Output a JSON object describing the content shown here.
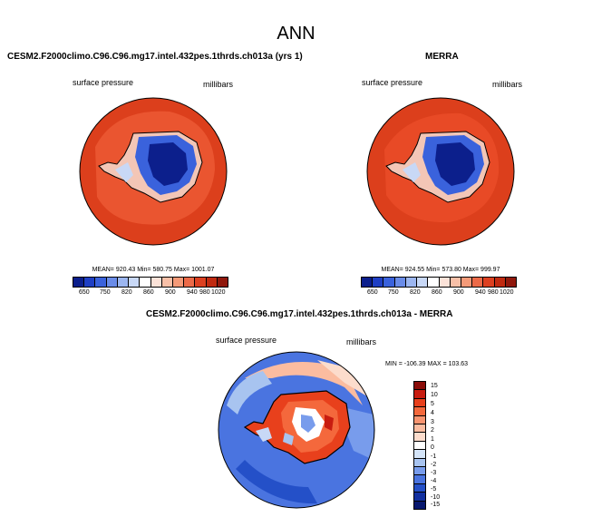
{
  "title": "ANN",
  "panels": {
    "model": {
      "title": "CESM2.F2000climo.C96.C96.mg17.intel.432pes.1thrds.ch013a (yrs 1)",
      "left_label": "surface pressure",
      "right_label": "millibars",
      "stats": "MEAN= 920.43  Min= 580.75  Max= 1001.07"
    },
    "obs": {
      "title": "MERRA",
      "left_label": "surface pressure",
      "right_label": "millibars",
      "stats": "MEAN= 924.55  Min= 573.80  Max= 999.97"
    },
    "diff": {
      "title": "CESM2.F2000climo.C96.C96.mg17.intel.432pes.1thrds.ch013a - MERRA",
      "left_label": "surface pressure",
      "right_label": "millibars",
      "stats": "MIN = -106.39 MAX = 103.63"
    }
  },
  "colorbar_main": {
    "colors": [
      "#0c1f8c",
      "#1f3fc4",
      "#3a62dc",
      "#6a8ce8",
      "#9cb6f0",
      "#c8d8f6",
      "#ffffff",
      "#fbe2d8",
      "#f8c0a8",
      "#f49a78",
      "#ec6a48",
      "#dc4020",
      "#c02a10",
      "#90180c"
    ],
    "labels": [
      "650",
      "750",
      "820",
      "860",
      "900",
      "940",
      "980",
      "1020"
    ]
  },
  "colorbar_diff": {
    "colors": [
      "#8a0c08",
      "#c81c10",
      "#e8401c",
      "#f4683c",
      "#f89470",
      "#fbbca0",
      "#fcdccc",
      "#ffffff",
      "#d4e4f8",
      "#a8c4f0",
      "#789cec",
      "#4a74e0",
      "#2450c8",
      "#1230a0",
      "#08186e"
    ],
    "labels": [
      "15",
      "10",
      "5",
      "4",
      "3",
      "2",
      "1",
      "0",
      "-1",
      "-2",
      "-3",
      "-4",
      "-5",
      "-10",
      "-15"
    ]
  }
}
